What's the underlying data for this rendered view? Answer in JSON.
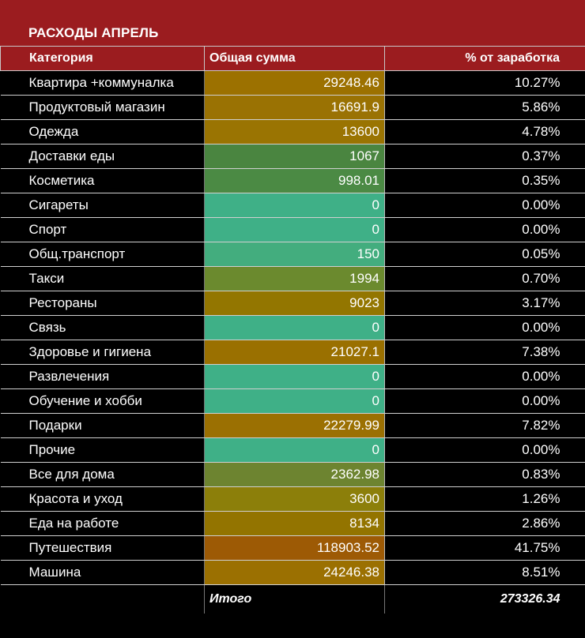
{
  "title": "РАСХОДЫ АПРЕЛЬ",
  "headers": {
    "category": "Категория",
    "amount": "Общая сумма",
    "percent": "% от заработка"
  },
  "rows": [
    {
      "category": "Квартира +коммуналка",
      "amount": "29248.46",
      "percent": "10.27%",
      "color": "#9c7100"
    },
    {
      "category": "Продуктовый магазин",
      "amount": "16691.9",
      "percent": "5.86%",
      "color": "#9a7203"
    },
    {
      "category": "Одежда",
      "amount": "13600",
      "percent": "4.78%",
      "color": "#9a7402"
    },
    {
      "category": "Доставки еды",
      "amount": "1067",
      "percent": "0.37%",
      "color": "#4a8540"
    },
    {
      "category": "Косметика",
      "amount": "998.01",
      "percent": "0.35%",
      "color": "#4b8a44"
    },
    {
      "category": "Сигареты",
      "amount": "0",
      "percent": "0.00%",
      "color": "#3fb087"
    },
    {
      "category": "Спорт",
      "amount": "0",
      "percent": "0.00%",
      "color": "#3fb087"
    },
    {
      "category": "Общ.транспорт",
      "amount": "150",
      "percent": "0.05%",
      "color": "#43ad7e"
    },
    {
      "category": "Такси",
      "amount": "1994",
      "percent": "0.70%",
      "color": "#6b8a2e"
    },
    {
      "category": "Рестораны",
      "amount": "9023",
      "percent": "3.17%",
      "color": "#937600"
    },
    {
      "category": "Связь",
      "amount": "0",
      "percent": "0.00%",
      "color": "#3fb087"
    },
    {
      "category": "Здоровье и гигиена",
      "amount": "21027.1",
      "percent": "7.38%",
      "color": "#9a7000"
    },
    {
      "category": "Развлечения",
      "amount": "0",
      "percent": "0.00%",
      "color": "#3fb087"
    },
    {
      "category": "Обучение и хобби",
      "amount": "0",
      "percent": "0.00%",
      "color": "#3fb087"
    },
    {
      "category": "Подарки",
      "amount": "22279.99",
      "percent": "7.82%",
      "color": "#9b7002"
    },
    {
      "category": "Прочие",
      "amount": "0",
      "percent": "0.00%",
      "color": "#3fb087"
    },
    {
      "category": "Все для дома",
      "amount": "2362.98",
      "percent": "0.83%",
      "color": "#6d8430"
    },
    {
      "category": "Красота и уход",
      "amount": "3600",
      "percent": "1.26%",
      "color": "#8c7f0a"
    },
    {
      "category": "Еда на работе",
      "amount": "8134",
      "percent": "2.86%",
      "color": "#937400"
    },
    {
      "category": "Путешествия",
      "amount": "118903.52",
      "percent": "41.75%",
      "color": "#9d5a05"
    },
    {
      "category": "Машина",
      "amount": "24246.38",
      "percent": "8.51%",
      "color": "#9b7001"
    }
  ],
  "total": {
    "label": "Итого",
    "value": "273326.34"
  }
}
